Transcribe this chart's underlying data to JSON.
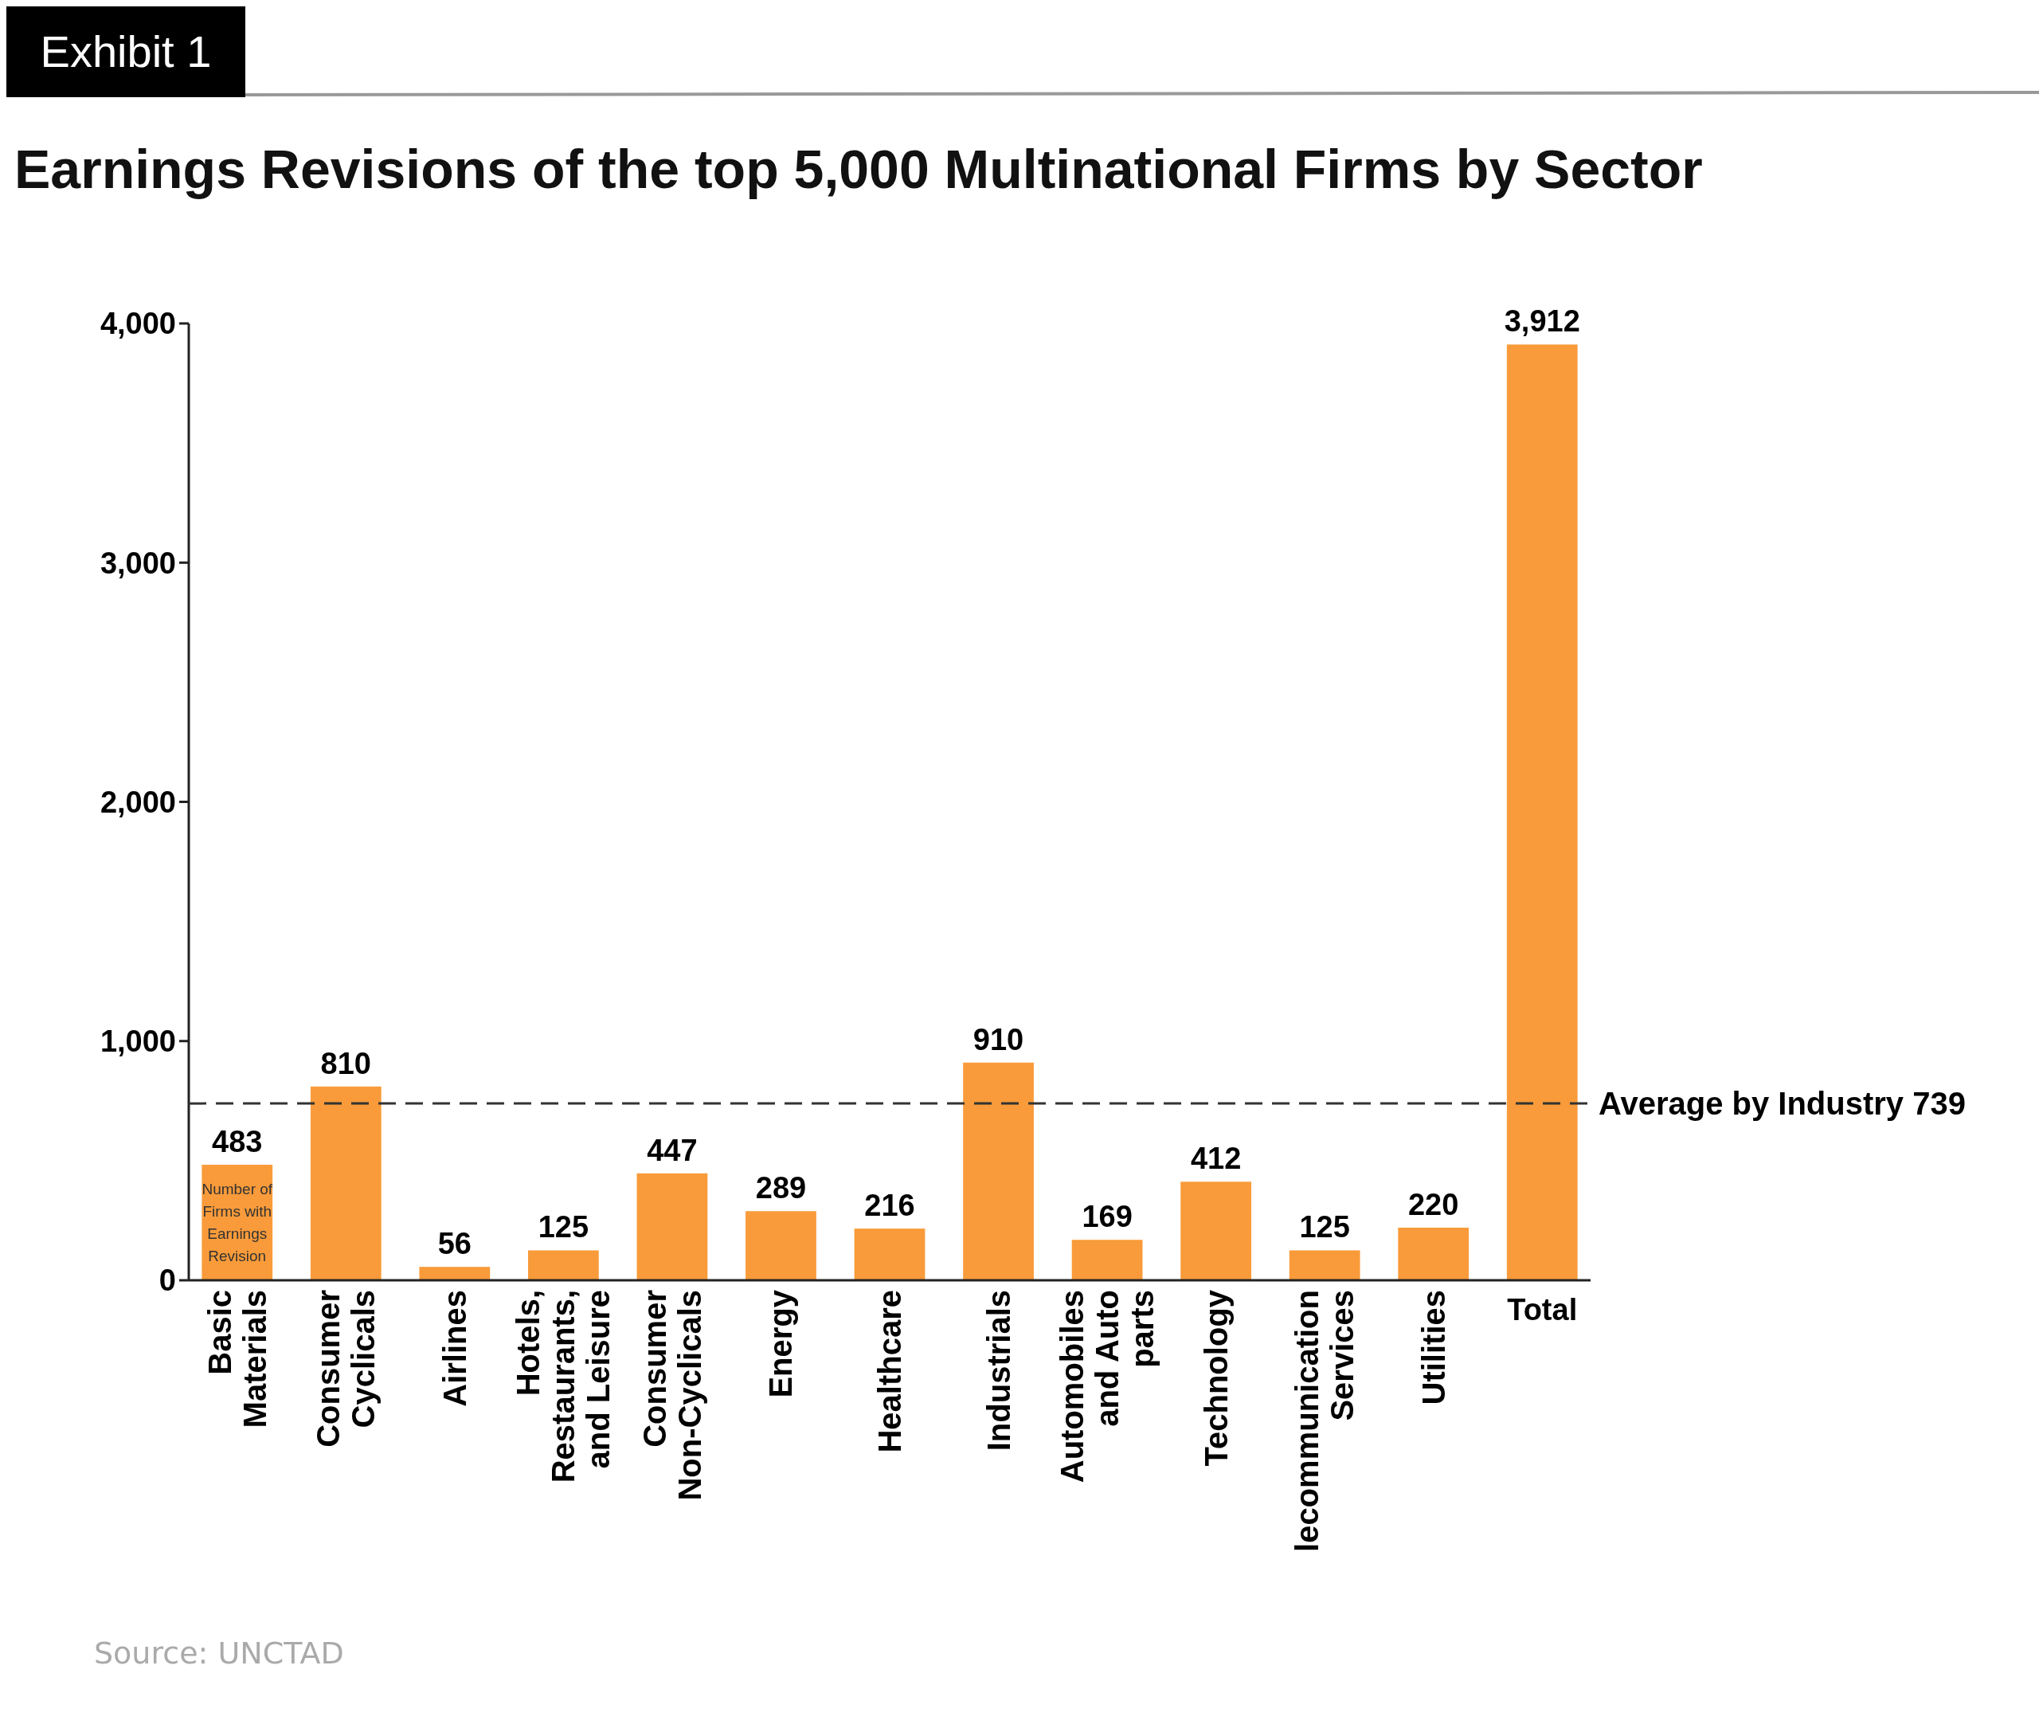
{
  "chart_data": {
    "type": "bar",
    "title": "Earnings Revisions of the top 5,000 Multinational Firms by Sector",
    "categories": [
      "Basic Materials",
      "Consumer Cyclicals",
      "Airlines",
      "Hotels, Restaurants, and Leisure",
      "Consumer Non-Cyclicals",
      "Energy",
      "Healthcare",
      "Industrials",
      "Automobiles and Auto parts",
      "Technology",
      "lecommunication Services",
      "Utilities",
      "Total"
    ],
    "values": [
      483,
      810,
      56,
      125,
      447,
      289,
      216,
      910,
      169,
      412,
      125,
      220,
      3912
    ],
    "color": "#f99b3a",
    "value_labels": [
      "483",
      "810",
      "56",
      "125",
      "447",
      "289",
      "216",
      "910",
      "169",
      "412",
      "125",
      "220",
      "3,912"
    ],
    "ylim": [
      0,
      4000
    ],
    "yticks": [
      {
        "value": 0,
        "label": "0"
      },
      {
        "value": 1000,
        "label": "1,000"
      },
      {
        "value": 2000,
        "label": "2,000"
      },
      {
        "value": 3000,
        "label": "3,000"
      },
      {
        "value": 4000,
        "label": "4,000"
      }
    ],
    "grid": false,
    "ref_lines": [
      {
        "axis": "y",
        "value": 739,
        "label": "Average by Industry 739",
        "line_style": "dashed"
      }
    ],
    "annotations": [
      "Exhibit 1",
      "Source: UNCTAD",
      "Number of Firms with Earnings Revision"
    ]
  }
}
